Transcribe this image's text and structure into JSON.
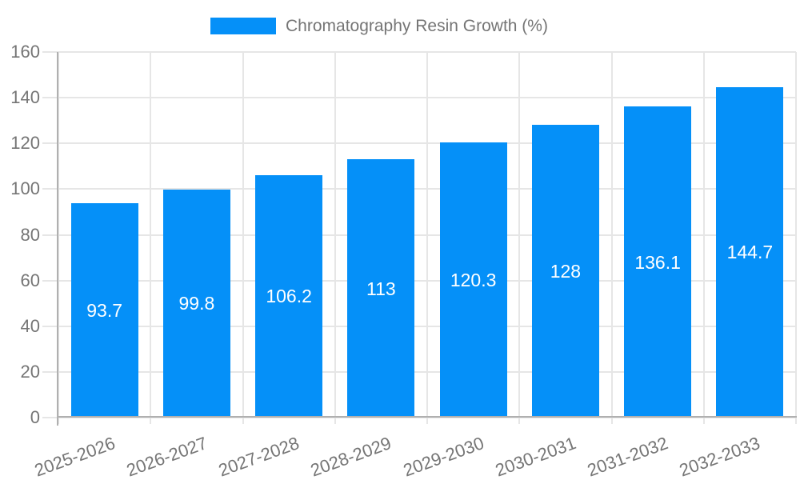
{
  "chart_data": {
    "type": "bar",
    "title": "Chromatography Resin Growth (%)",
    "legend_position": "top",
    "categories": [
      "2025-2026",
      "2026-2027",
      "2027-2028",
      "2028-2029",
      "2029-2030",
      "2030-2031",
      "2031-2032",
      "2032-2033"
    ],
    "series": [
      {
        "name": "Chromatography Resin Growth (%)",
        "values": [
          93.7,
          99.8,
          106.2,
          113,
          120.3,
          128,
          136.1,
          144.7
        ],
        "value_labels": [
          "93.7",
          "99.8",
          "106.2",
          "113",
          "120.3",
          "128",
          "136.1",
          "144.7"
        ]
      }
    ],
    "xlabel": "",
    "ylabel": "",
    "ylim": [
      0,
      160
    ],
    "yticks": [
      0,
      20,
      40,
      60,
      80,
      100,
      120,
      140,
      160
    ],
    "grid": true,
    "colors": {
      "bar": "#0590f8",
      "value_label": "#ffffff",
      "axis_text": "#757575",
      "gridline": "#e6e6e6",
      "axis_line": "#b0b0b0",
      "background": "#ffffff"
    }
  }
}
